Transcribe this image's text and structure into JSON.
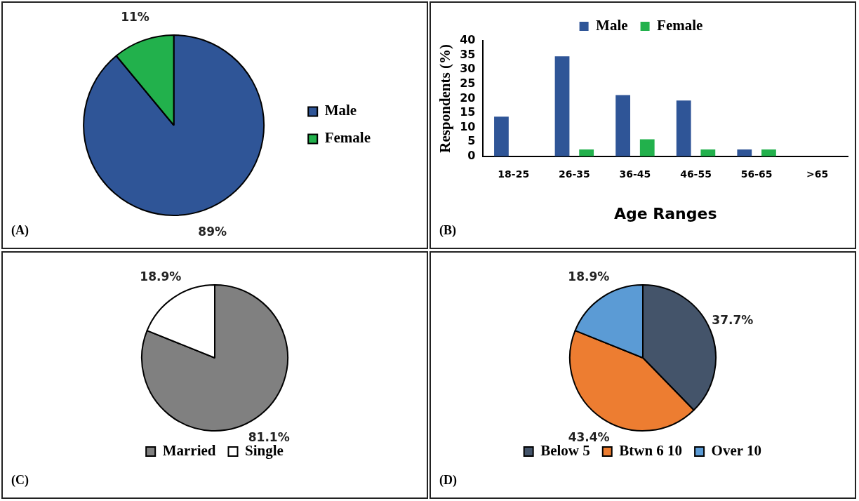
{
  "chart_data": [
    {
      "type": "pie",
      "categories": [
        "Male",
        "Female"
      ],
      "values": [
        89,
        11
      ],
      "colors": [
        "#2f5597",
        "#22b14c"
      ],
      "value_labels": [
        "89%",
        "11%"
      ],
      "legend": "right",
      "annotations": [
        "(A)"
      ]
    },
    {
      "type": "bar",
      "categories": [
        "18-25",
        "26-35",
        "36-45",
        "46-55",
        "56-65",
        ">65"
      ],
      "series": [
        {
          "name": "Male",
          "color": "#2f5597",
          "values": [
            13.7,
            34.6,
            21.2,
            19.3,
            2.4,
            0
          ]
        },
        {
          "name": "Female",
          "color": "#22b14c",
          "values": [
            0,
            2.4,
            5.9,
            2.4,
            2.4,
            0
          ]
        }
      ],
      "ylim": [
        0,
        40
      ],
      "yticks": [
        0,
        5,
        10,
        15,
        20,
        25,
        30,
        35,
        40
      ],
      "ylabel": "Respondents (%)",
      "xlabel": "Age Ranges",
      "grid": false,
      "legend": "top",
      "annotations": [
        "(B)"
      ]
    },
    {
      "type": "pie",
      "categories": [
        "Married",
        "Single"
      ],
      "values": [
        81.1,
        18.9
      ],
      "colors": [
        "#808080",
        "#ffffff"
      ],
      "value_labels": [
        "81.1%",
        "18.9%"
      ],
      "legend": "bottom",
      "annotations": [
        "(C)"
      ]
    },
    {
      "type": "pie",
      "categories": [
        "Below 5",
        "Btwn 6 10",
        "Over 10"
      ],
      "values": [
        37.7,
        43.4,
        18.9
      ],
      "colors": [
        "#44546a",
        "#ed7d31",
        "#5b9bd5"
      ],
      "value_labels": [
        "37.7%",
        "43.4%",
        "18.9%"
      ],
      "legend": "bottom",
      "annotations": [
        "(D)"
      ]
    }
  ]
}
